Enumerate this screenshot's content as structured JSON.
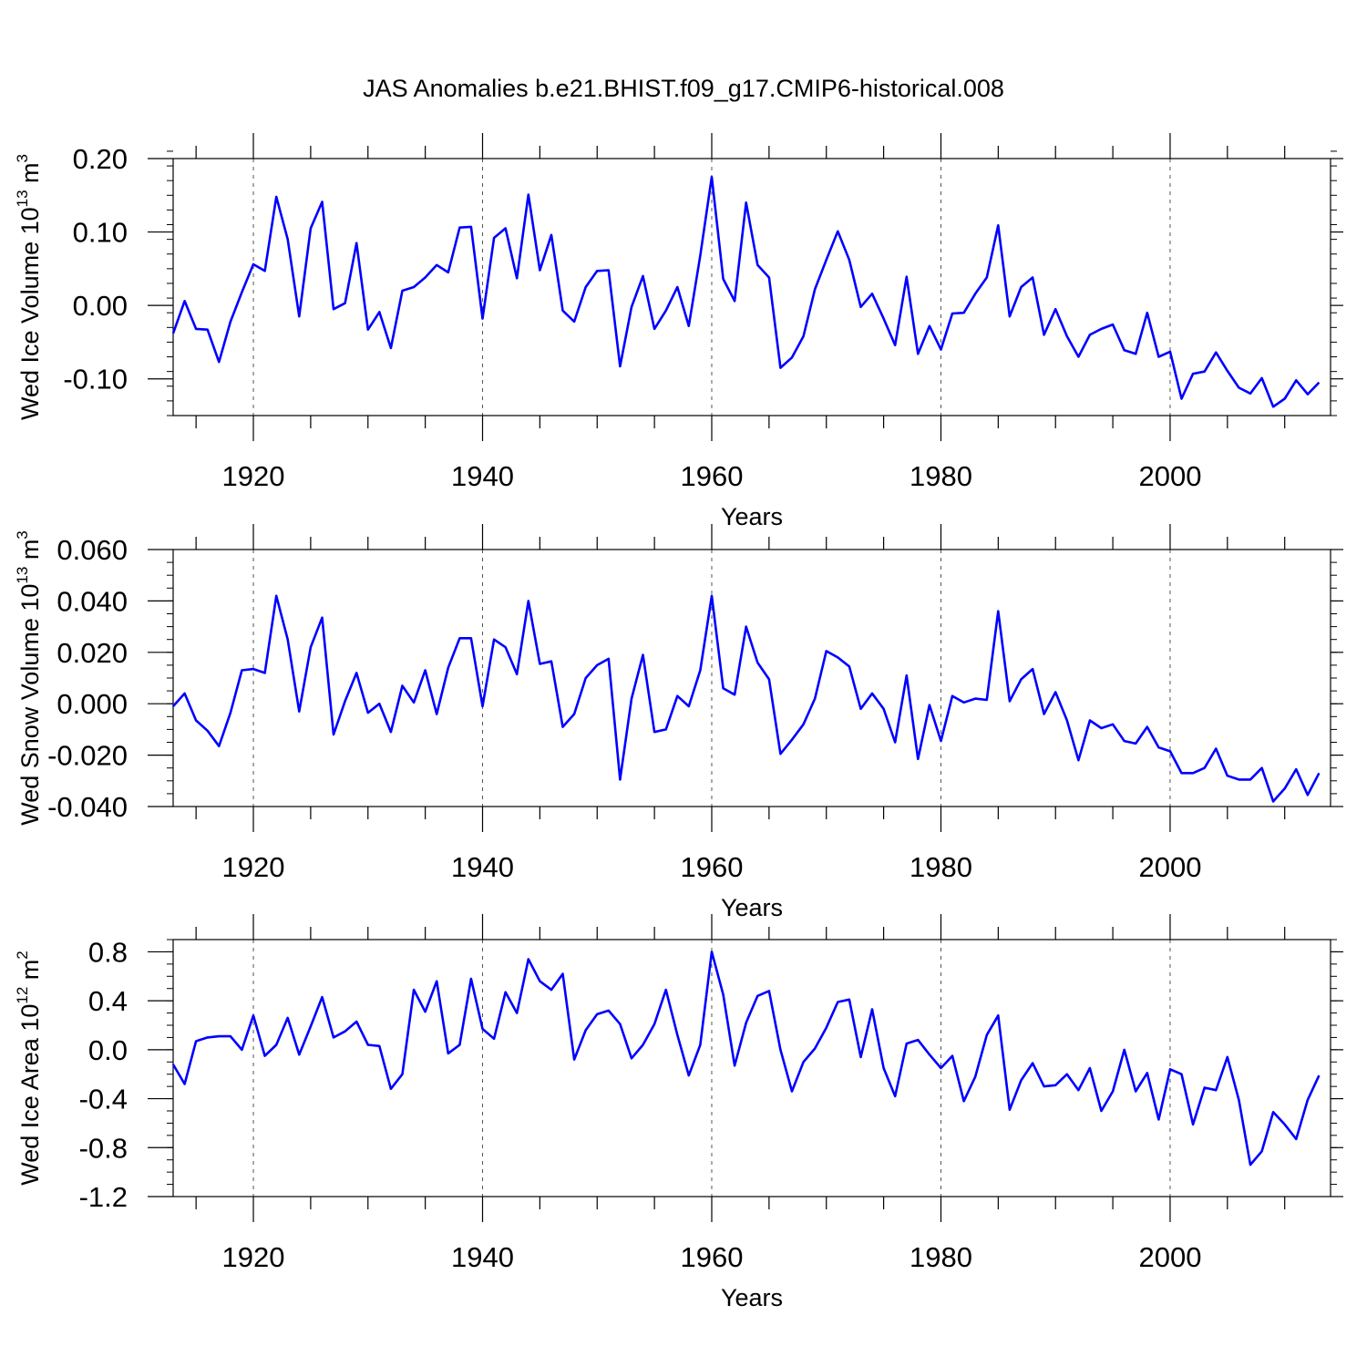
{
  "title": "JAS Anomalies b.e21.BHIST.f09_g17.CMIP6-historical.008",
  "colors": {
    "line": "#0000ff",
    "axis": "#000000",
    "grid": "#555555"
  },
  "chart_data": [
    {
      "type": "line",
      "ylabel": "Wed Ice Volume",
      "yunit_base": "10",
      "yunit_exp": "13",
      "yunit_tail": "m",
      "yunit_tail_exp": "3",
      "xlabel": "Years",
      "xlim": [
        1913,
        2014
      ],
      "ylim": [
        -0.15,
        0.2
      ],
      "yticks": [
        0.2,
        0.1,
        0.0,
        -0.1
      ],
      "ytick_labels": [
        "0.20",
        "0.10",
        "0.00",
        "-0.10"
      ],
      "yminor_step": 0.02,
      "xticks": [
        1920,
        1940,
        1960,
        1980,
        2000
      ],
      "xtick_labels": [
        "1920",
        "1940",
        "1960",
        "1980",
        "2000"
      ],
      "x_start": 1913,
      "values": [
        -0.038,
        0.006,
        -0.032,
        -0.033,
        -0.077,
        -0.022,
        0.018,
        0.056,
        0.047,
        0.148,
        0.09,
        -0.015,
        0.105,
        0.141,
        -0.005,
        0.003,
        0.085,
        -0.033,
        -0.009,
        -0.058,
        0.02,
        0.025,
        0.038,
        0.055,
        0.045,
        0.106,
        0.107,
        -0.018,
        0.092,
        0.105,
        0.037,
        0.151,
        0.048,
        0.096,
        -0.007,
        -0.022,
        0.025,
        0.047,
        0.048,
        -0.083,
        -0.002,
        0.04,
        -0.032,
        -0.007,
        0.025,
        -0.028,
        0.068,
        0.175,
        0.036,
        0.006,
        0.14,
        0.055,
        0.038,
        -0.085,
        -0.071,
        -0.042,
        0.022,
        0.062,
        0.101,
        0.062,
        -0.002,
        0.016,
        -0.018,
        -0.054,
        0.039,
        -0.066,
        -0.028,
        -0.06,
        -0.011,
        -0.01,
        0.016,
        0.038,
        0.109,
        -0.015,
        0.025,
        0.038,
        -0.04,
        -0.005,
        -0.042,
        -0.07,
        -0.04,
        -0.032,
        -0.026,
        -0.061,
        -0.066,
        -0.01,
        -0.07,
        -0.063,
        -0.127,
        -0.093,
        -0.09,
        -0.064,
        -0.089,
        -0.112,
        -0.12,
        -0.099,
        -0.138,
        -0.127,
        -0.102,
        -0.121,
        -0.105
      ]
    },
    {
      "type": "line",
      "ylabel": "Wed Snow Volume",
      "yunit_base": "10",
      "yunit_exp": "13",
      "yunit_tail": "m",
      "yunit_tail_exp": "3",
      "xlabel": "Years",
      "xlim": [
        1913,
        2014
      ],
      "ylim": [
        -0.04,
        0.06
      ],
      "yticks": [
        0.06,
        0.04,
        0.02,
        0.0,
        -0.02,
        -0.04
      ],
      "ytick_labels": [
        "0.060",
        "0.040",
        "0.020",
        "0.000",
        "-0.020",
        "-0.040"
      ],
      "yminor_step": 0.005,
      "xticks": [
        1920,
        1940,
        1960,
        1980,
        2000
      ],
      "xtick_labels": [
        "1920",
        "1940",
        "1960",
        "1980",
        "2000"
      ],
      "x_start": 1913,
      "values": [
        -0.001,
        0.004,
        -0.0065,
        -0.0105,
        -0.0165,
        -0.0035,
        0.013,
        0.0135,
        0.012,
        0.042,
        0.025,
        -0.003,
        0.022,
        0.0335,
        -0.012,
        0.001,
        0.012,
        -0.0035,
        0.0,
        -0.011,
        0.007,
        0.0005,
        0.013,
        -0.004,
        0.014,
        0.0255,
        0.0255,
        -0.001,
        0.025,
        0.022,
        0.0115,
        0.04,
        0.0155,
        0.0165,
        -0.009,
        -0.004,
        0.01,
        0.015,
        0.0175,
        -0.0295,
        0.002,
        0.019,
        -0.011,
        -0.01,
        0.003,
        -0.001,
        0.013,
        0.042,
        0.006,
        0.0035,
        0.03,
        0.016,
        0.0095,
        -0.0195,
        -0.014,
        -0.008,
        0.002,
        0.0205,
        0.018,
        0.0145,
        -0.002,
        0.004,
        -0.002,
        -0.015,
        0.011,
        -0.0215,
        -0.0005,
        -0.0145,
        0.003,
        0.0005,
        0.002,
        0.0015,
        0.036,
        0.001,
        0.0095,
        0.0135,
        -0.004,
        0.0045,
        -0.0065,
        -0.022,
        -0.0065,
        -0.0095,
        -0.008,
        -0.0145,
        -0.0155,
        -0.009,
        -0.017,
        -0.0185,
        -0.027,
        -0.027,
        -0.025,
        -0.0175,
        -0.028,
        -0.0295,
        -0.0295,
        -0.025,
        -0.038,
        -0.033,
        -0.0255,
        -0.0355,
        -0.027
      ]
    },
    {
      "type": "line",
      "ylabel": "Wed Ice Area",
      "yunit_base": "10",
      "yunit_exp": "12",
      "yunit_tail": "m",
      "yunit_tail_exp": "2",
      "xlabel": "Years",
      "xlim": [
        1913,
        2014
      ],
      "ylim": [
        -1.2,
        0.9
      ],
      "yticks": [
        0.8,
        0.4,
        0.0,
        -0.4,
        -0.8,
        -1.2
      ],
      "ytick_labels": [
        "0.8",
        "0.4",
        "0.0",
        "-0.4",
        "-0.8",
        "-1.2"
      ],
      "yminor_step": 0.1,
      "xticks": [
        1920,
        1940,
        1960,
        1980,
        2000
      ],
      "xtick_labels": [
        "1920",
        "1940",
        "1960",
        "1980",
        "2000"
      ],
      "x_start": 1913,
      "values": [
        -0.12,
        -0.28,
        0.07,
        0.1,
        0.11,
        0.11,
        0.0,
        0.28,
        -0.05,
        0.04,
        0.26,
        -0.04,
        0.19,
        0.43,
        0.1,
        0.15,
        0.23,
        0.04,
        0.03,
        -0.32,
        -0.2,
        0.49,
        0.31,
        0.56,
        -0.03,
        0.04,
        0.58,
        0.17,
        0.09,
        0.47,
        0.3,
        0.74,
        0.56,
        0.49,
        0.62,
        -0.08,
        0.16,
        0.29,
        0.32,
        0.21,
        -0.07,
        0.04,
        0.21,
        0.49,
        0.12,
        -0.21,
        0.04,
        0.8,
        0.45,
        -0.13,
        0.22,
        0.44,
        0.48,
        0.0,
        -0.34,
        -0.1,
        0.01,
        0.18,
        0.39,
        0.41,
        -0.06,
        0.33,
        -0.15,
        -0.38,
        0.05,
        0.08,
        -0.04,
        -0.15,
        -0.05,
        -0.42,
        -0.22,
        0.12,
        0.28,
        -0.49,
        -0.25,
        -0.11,
        -0.3,
        -0.29,
        -0.2,
        -0.33,
        -0.15,
        -0.5,
        -0.34,
        0.0,
        -0.34,
        -0.19,
        -0.57,
        -0.16,
        -0.2,
        -0.61,
        -0.31,
        -0.33,
        -0.06,
        -0.41,
        -0.94,
        -0.83,
        -0.51,
        -0.61,
        -0.73,
        -0.41,
        -0.21
      ]
    }
  ]
}
